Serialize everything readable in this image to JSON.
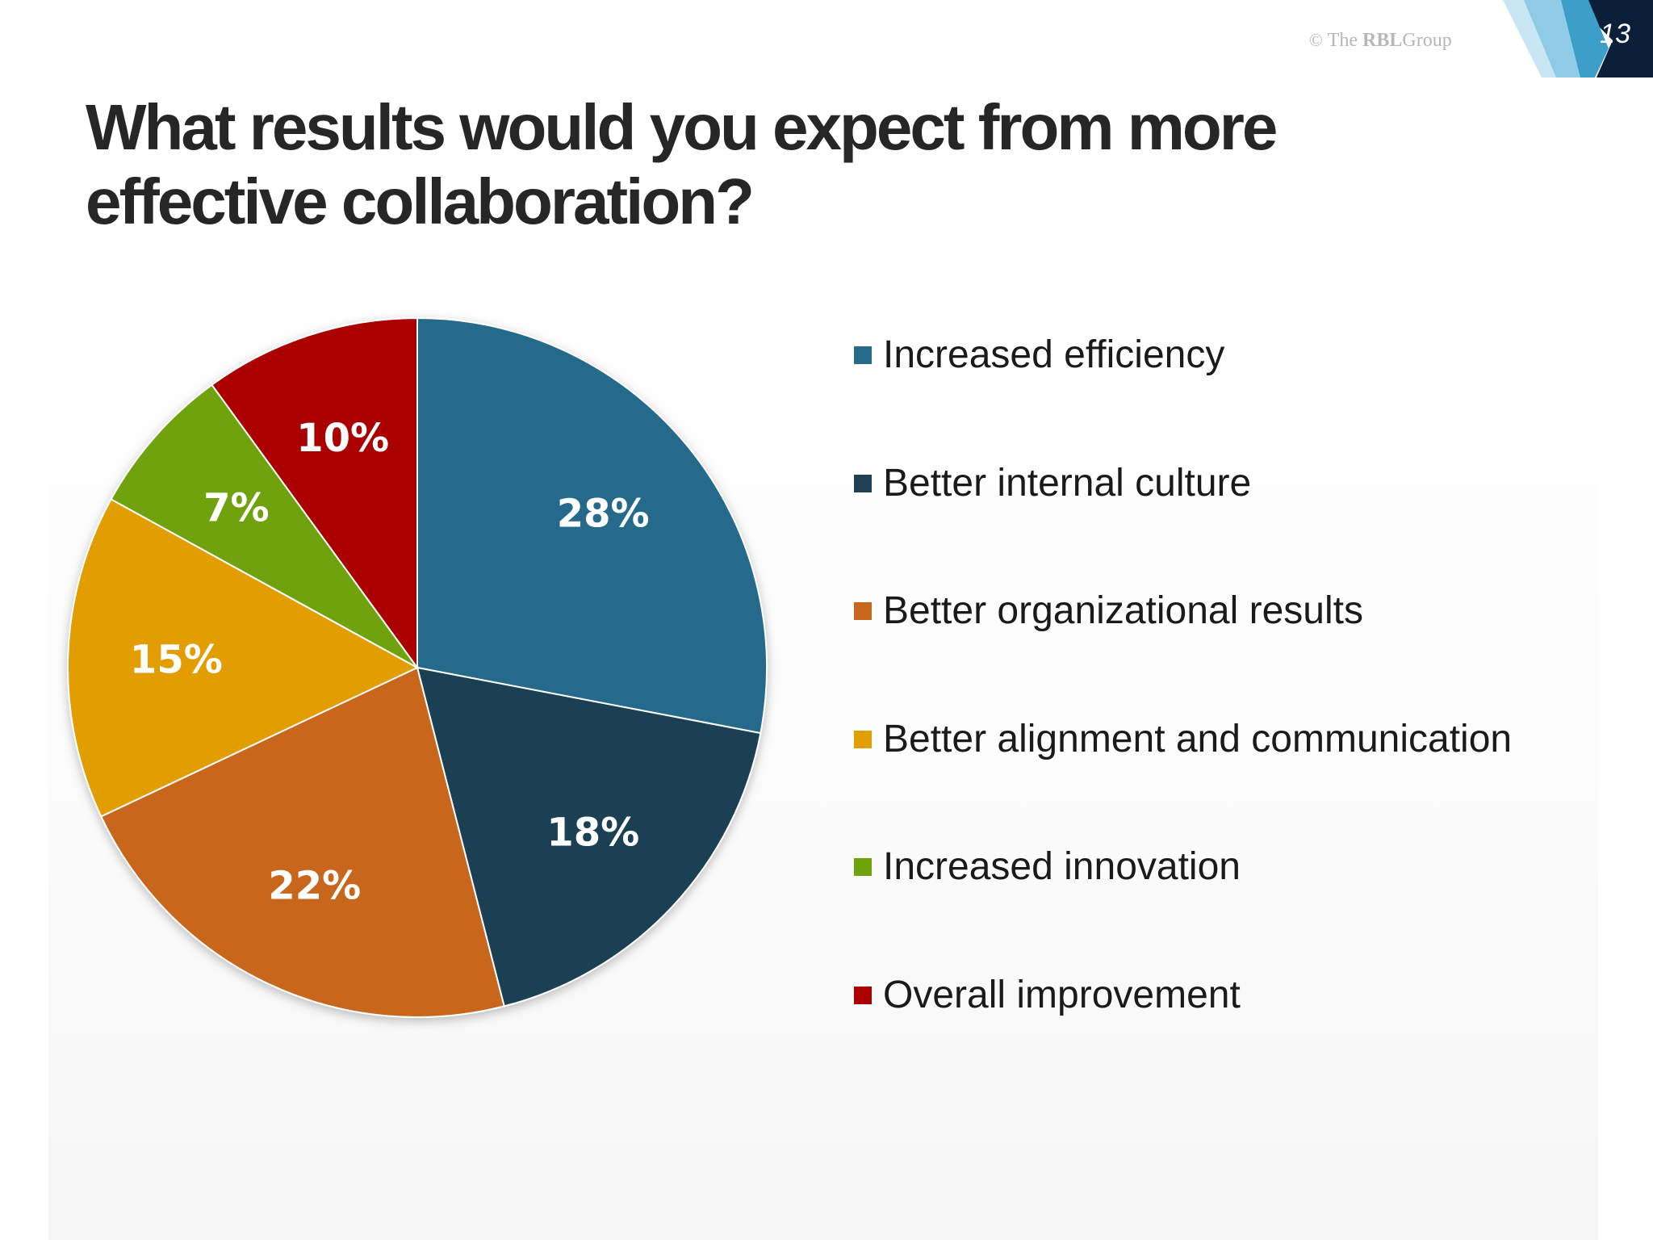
{
  "header": {
    "slide_number": "13",
    "copyright": {
      "mark": "©",
      "brand_prefix": "The ",
      "brand_strong": "RBL",
      "brand_suffix": "Group"
    }
  },
  "title": "What results would you expect from more effective collaboration?",
  "chart_data": {
    "type": "pie",
    "categories": [
      "Increased efficiency",
      "Better internal culture",
      "Better organizational results",
      "Better alignment and communication",
      "Increased innovation",
      "Overall improvement"
    ],
    "values": [
      28,
      18,
      22,
      15,
      7,
      10
    ],
    "labels": [
      "28%",
      "18%",
      "22%",
      "15%",
      "7%",
      "10%"
    ],
    "colors": [
      "#276b8b",
      "#1f3f52",
      "#c8661c",
      "#e29e05",
      "#6fa209",
      "#ab0000"
    ],
    "legend_placement": "right",
    "start_angle_deg": 0,
    "direction": "clockwise"
  }
}
